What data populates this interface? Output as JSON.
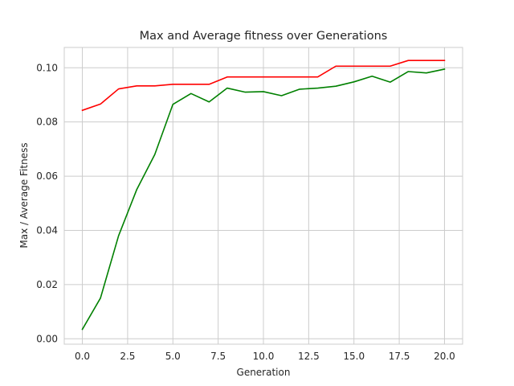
{
  "chart_data": {
    "type": "line",
    "title": "Max and Average fitness over Generations",
    "xlabel": "Generation",
    "ylabel": "Max / Average Fitness",
    "xlim": [
      -1.0,
      21.0
    ],
    "ylim": [
      -0.002,
      0.1075
    ],
    "xticks": [
      0.0,
      2.5,
      5.0,
      7.5,
      10.0,
      12.5,
      15.0,
      17.5,
      20.0
    ],
    "xtick_labels": [
      "0.0",
      "2.5",
      "5.0",
      "7.5",
      "10.0",
      "12.5",
      "15.0",
      "17.5",
      "20.0"
    ],
    "yticks": [
      0.0,
      0.02,
      0.04,
      0.06,
      0.08,
      0.1
    ],
    "ytick_labels": [
      "0.00",
      "0.02",
      "0.04",
      "0.06",
      "0.08",
      "0.10"
    ],
    "grid": true,
    "x": [
      0,
      1,
      2,
      3,
      4,
      5,
      6,
      7,
      8,
      9,
      10,
      11,
      12,
      13,
      14,
      15,
      16,
      17,
      18,
      19,
      20
    ],
    "series": [
      {
        "color": "#ff0000",
        "values": [
          0.0843,
          0.0866,
          0.0922,
          0.0933,
          0.0933,
          0.0939,
          0.0939,
          0.0939,
          0.0966,
          0.0966,
          0.0966,
          0.0966,
          0.0966,
          0.0966,
          0.1006,
          0.1006,
          0.1006,
          0.1006,
          0.1027,
          0.1027,
          0.1027
        ]
      },
      {
        "color": "#008000",
        "values": [
          0.0035,
          0.015,
          0.038,
          0.055,
          0.068,
          0.0865,
          0.0905,
          0.0874,
          0.0925,
          0.091,
          0.0912,
          0.0897,
          0.0921,
          0.0925,
          0.0932,
          0.0948,
          0.0969,
          0.0947,
          0.0986,
          0.0981,
          0.0995
        ]
      }
    ]
  },
  "colors": {
    "grid": "#cccccc",
    "text": "#262626"
  }
}
